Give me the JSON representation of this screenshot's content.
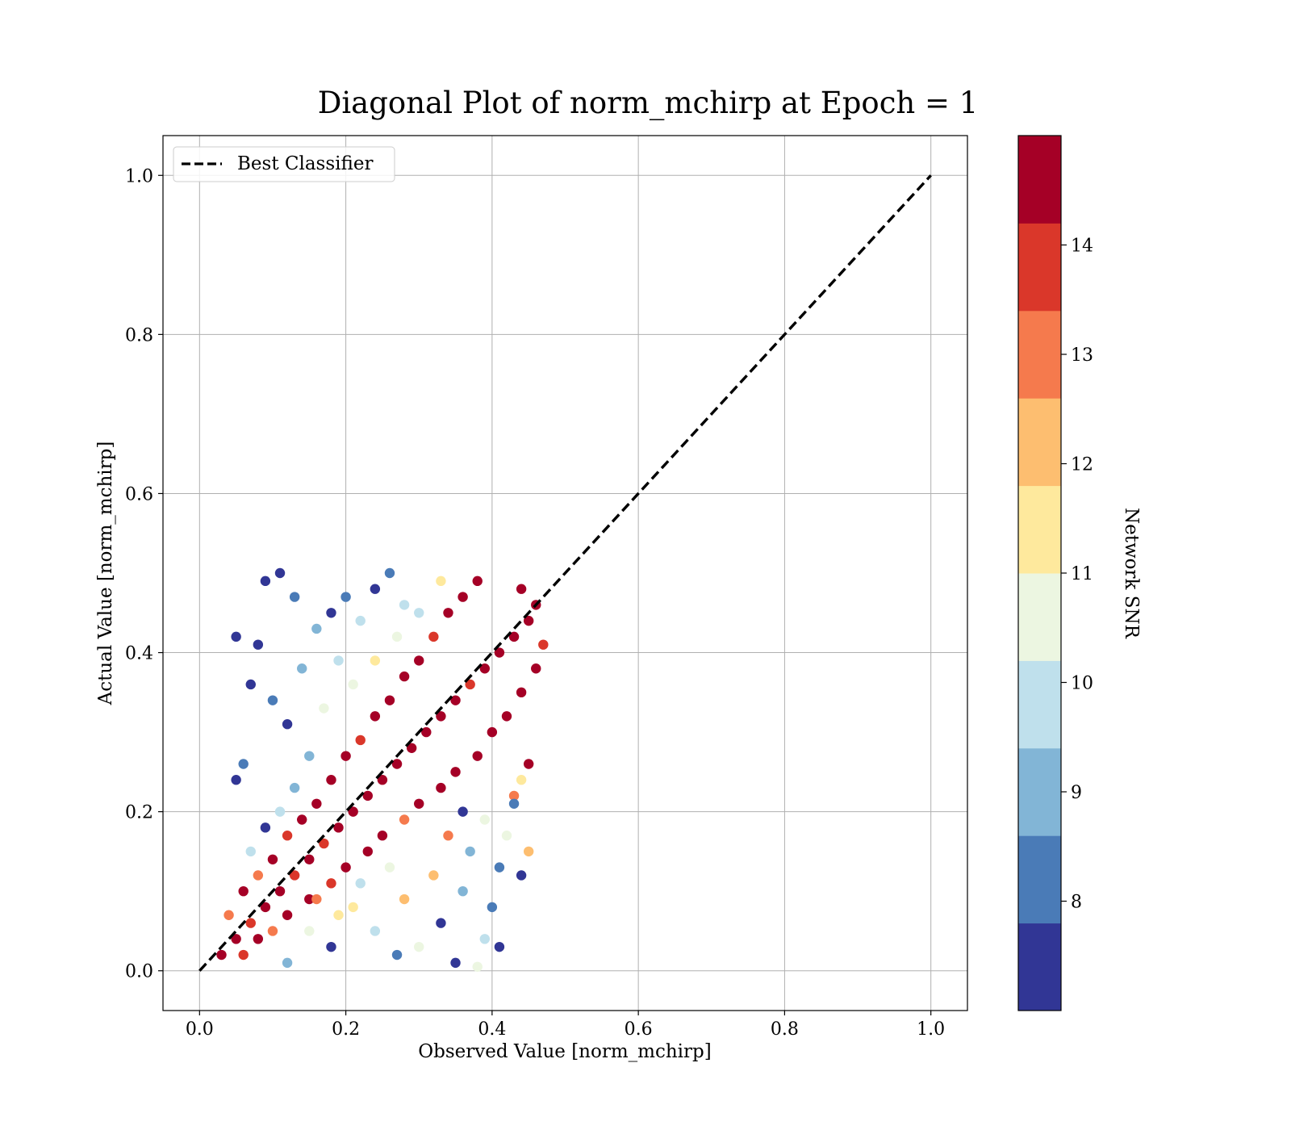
{
  "chart_data": {
    "type": "scatter",
    "title": "Diagonal Plot of norm_mchirp at Epoch = 1",
    "xlabel": "Observed Value [norm_mchirp]",
    "ylabel": "Actual Value [norm_mchirp]",
    "xlim": [
      -0.05,
      1.05
    ],
    "ylim": [
      -0.05,
      1.05
    ],
    "xticks": [
      "0.0",
      "0.2",
      "0.4",
      "0.6",
      "0.8",
      "1.0"
    ],
    "yticks": [
      "0.0",
      "0.2",
      "0.4",
      "0.6",
      "0.8",
      "1.0"
    ],
    "grid": true,
    "legend": {
      "placement": "upper-left",
      "entries": [
        "Best Classifier"
      ]
    },
    "reference_line": {
      "name": "Best Classifier",
      "style": "dashed",
      "color": "#000000",
      "points": [
        [
          0.0,
          0.0
        ],
        [
          1.0,
          1.0
        ]
      ]
    },
    "colorbar": {
      "label": "Network SNR",
      "range": [
        7.0,
        15.0
      ],
      "tick_values": [
        8,
        9,
        10,
        11,
        12,
        13,
        14
      ],
      "tick_labels": [
        "8",
        "9",
        "10",
        "11",
        "12",
        "13",
        "14"
      ],
      "colors": [
        "#313695",
        "#4a7bb7",
        "#82b5d6",
        "#bfe0ec",
        "#ecf6e1",
        "#fee99d",
        "#fdbe70",
        "#f57a4d",
        "#da372a",
        "#a50026"
      ]
    },
    "scatter_summary": {
      "x_range": [
        0.02,
        0.48
      ],
      "y_range": [
        0.0,
        0.5
      ],
      "snr_range": [
        7.0,
        15.0
      ]
    },
    "points": [
      [
        0.03,
        0.02,
        14.6
      ],
      [
        0.05,
        0.04,
        14.2
      ],
      [
        0.07,
        0.06,
        13.9
      ],
      [
        0.09,
        0.08,
        14.8
      ],
      [
        0.11,
        0.1,
        14.5
      ],
      [
        0.13,
        0.12,
        14.1
      ],
      [
        0.15,
        0.14,
        14.7
      ],
      [
        0.17,
        0.16,
        13.5
      ],
      [
        0.19,
        0.18,
        14.9
      ],
      [
        0.21,
        0.2,
        14.3
      ],
      [
        0.23,
        0.22,
        14.6
      ],
      [
        0.25,
        0.24,
        14.8
      ],
      [
        0.27,
        0.26,
        14.2
      ],
      [
        0.29,
        0.28,
        14.5
      ],
      [
        0.31,
        0.3,
        14.7
      ],
      [
        0.33,
        0.32,
        14.4
      ],
      [
        0.35,
        0.34,
        14.8
      ],
      [
        0.37,
        0.36,
        14.1
      ],
      [
        0.39,
        0.38,
        14.6
      ],
      [
        0.41,
        0.4,
        14.9
      ],
      [
        0.43,
        0.42,
        14.3
      ],
      [
        0.45,
        0.44,
        14.7
      ],
      [
        0.46,
        0.46,
        14.5
      ],
      [
        0.44,
        0.48,
        14.8
      ],
      [
        0.04,
        0.07,
        13.2
      ],
      [
        0.06,
        0.1,
        14.4
      ],
      [
        0.08,
        0.12,
        12.6
      ],
      [
        0.1,
        0.14,
        14.6
      ],
      [
        0.12,
        0.17,
        13.8
      ],
      [
        0.14,
        0.19,
        14.7
      ],
      [
        0.16,
        0.21,
        14.2
      ],
      [
        0.18,
        0.24,
        14.5
      ],
      [
        0.2,
        0.27,
        14.8
      ],
      [
        0.22,
        0.29,
        14.0
      ],
      [
        0.24,
        0.32,
        14.6
      ],
      [
        0.26,
        0.34,
        14.3
      ],
      [
        0.28,
        0.37,
        14.7
      ],
      [
        0.3,
        0.39,
        14.9
      ],
      [
        0.32,
        0.42,
        14.1
      ],
      [
        0.34,
        0.45,
        14.5
      ],
      [
        0.36,
        0.47,
        14.6
      ],
      [
        0.38,
        0.49,
        14.8
      ],
      [
        0.06,
        0.02,
        13.6
      ],
      [
        0.08,
        0.04,
        14.5
      ],
      [
        0.1,
        0.05,
        12.8
      ],
      [
        0.12,
        0.07,
        14.2
      ],
      [
        0.15,
        0.09,
        14.6
      ],
      [
        0.18,
        0.11,
        13.4
      ],
      [
        0.2,
        0.13,
        14.7
      ],
      [
        0.23,
        0.15,
        14.3
      ],
      [
        0.25,
        0.17,
        14.8
      ],
      [
        0.28,
        0.19,
        13.1
      ],
      [
        0.3,
        0.21,
        14.5
      ],
      [
        0.33,
        0.23,
        14.6
      ],
      [
        0.35,
        0.25,
        14.9
      ],
      [
        0.38,
        0.27,
        14.2
      ],
      [
        0.4,
        0.3,
        14.7
      ],
      [
        0.42,
        0.32,
        14.4
      ],
      [
        0.44,
        0.35,
        14.8
      ],
      [
        0.46,
        0.38,
        14.6
      ],
      [
        0.47,
        0.41,
        13.9
      ],
      [
        0.45,
        0.26,
        14.5
      ],
      [
        0.43,
        0.22,
        13.2
      ],
      [
        0.09,
        0.49,
        7.3
      ],
      [
        0.11,
        0.5,
        7.4
      ],
      [
        0.13,
        0.47,
        8.1
      ],
      [
        0.05,
        0.42,
        7.2
      ],
      [
        0.08,
        0.41,
        7.5
      ],
      [
        0.07,
        0.36,
        7.6
      ],
      [
        0.1,
        0.34,
        8.3
      ],
      [
        0.12,
        0.31,
        7.4
      ],
      [
        0.06,
        0.26,
        8.4
      ],
      [
        0.05,
        0.24,
        7.3
      ],
      [
        0.14,
        0.38,
        9.2
      ],
      [
        0.16,
        0.43,
        8.8
      ],
      [
        0.18,
        0.45,
        7.6
      ],
      [
        0.2,
        0.47,
        8.2
      ],
      [
        0.22,
        0.44,
        9.4
      ],
      [
        0.24,
        0.48,
        7.7
      ],
      [
        0.26,
        0.5,
        8.6
      ],
      [
        0.28,
        0.46,
        10.2
      ],
      [
        0.19,
        0.39,
        9.8
      ],
      [
        0.17,
        0.33,
        10.6
      ],
      [
        0.15,
        0.27,
        9.1
      ],
      [
        0.13,
        0.23,
        8.7
      ],
      [
        0.11,
        0.2,
        10.1
      ],
      [
        0.09,
        0.18,
        7.8
      ],
      [
        0.07,
        0.15,
        9.6
      ],
      [
        0.24,
        0.39,
        11.2
      ],
      [
        0.27,
        0.42,
        10.4
      ],
      [
        0.3,
        0.45,
        9.9
      ],
      [
        0.33,
        0.49,
        11.6
      ],
      [
        0.21,
        0.36,
        10.8
      ],
      [
        0.35,
        0.01,
        7.4
      ],
      [
        0.38,
        0.005,
        10.3
      ],
      [
        0.39,
        0.04,
        9.4
      ],
      [
        0.41,
        0.03,
        7.3
      ],
      [
        0.4,
        0.08,
        8.6
      ],
      [
        0.44,
        0.12,
        7.5
      ],
      [
        0.42,
        0.17,
        10.7
      ],
      [
        0.43,
        0.21,
        8.2
      ],
      [
        0.44,
        0.24,
        11.4
      ],
      [
        0.45,
        0.15,
        12.4
      ],
      [
        0.36,
        0.1,
        8.9
      ],
      [
        0.33,
        0.06,
        7.6
      ],
      [
        0.3,
        0.03,
        10.4
      ],
      [
        0.27,
        0.02,
        8.3
      ],
      [
        0.24,
        0.05,
        9.7
      ],
      [
        0.21,
        0.08,
        11.3
      ],
      [
        0.18,
        0.03,
        7.5
      ],
      [
        0.15,
        0.05,
        10.6
      ],
      [
        0.12,
        0.01,
        8.8
      ],
      [
        0.28,
        0.09,
        12.2
      ],
      [
        0.32,
        0.12,
        11.8
      ],
      [
        0.37,
        0.15,
        9.3
      ],
      [
        0.39,
        0.19,
        10.9
      ],
      [
        0.41,
        0.13,
        8.4
      ],
      [
        0.34,
        0.17,
        12.6
      ],
      [
        0.26,
        0.13,
        10.3
      ],
      [
        0.22,
        0.11,
        9.5
      ],
      [
        0.19,
        0.07,
        11.6
      ],
      [
        0.16,
        0.09,
        12.8
      ],
      [
        0.36,
        0.2,
        7.7
      ]
    ]
  }
}
